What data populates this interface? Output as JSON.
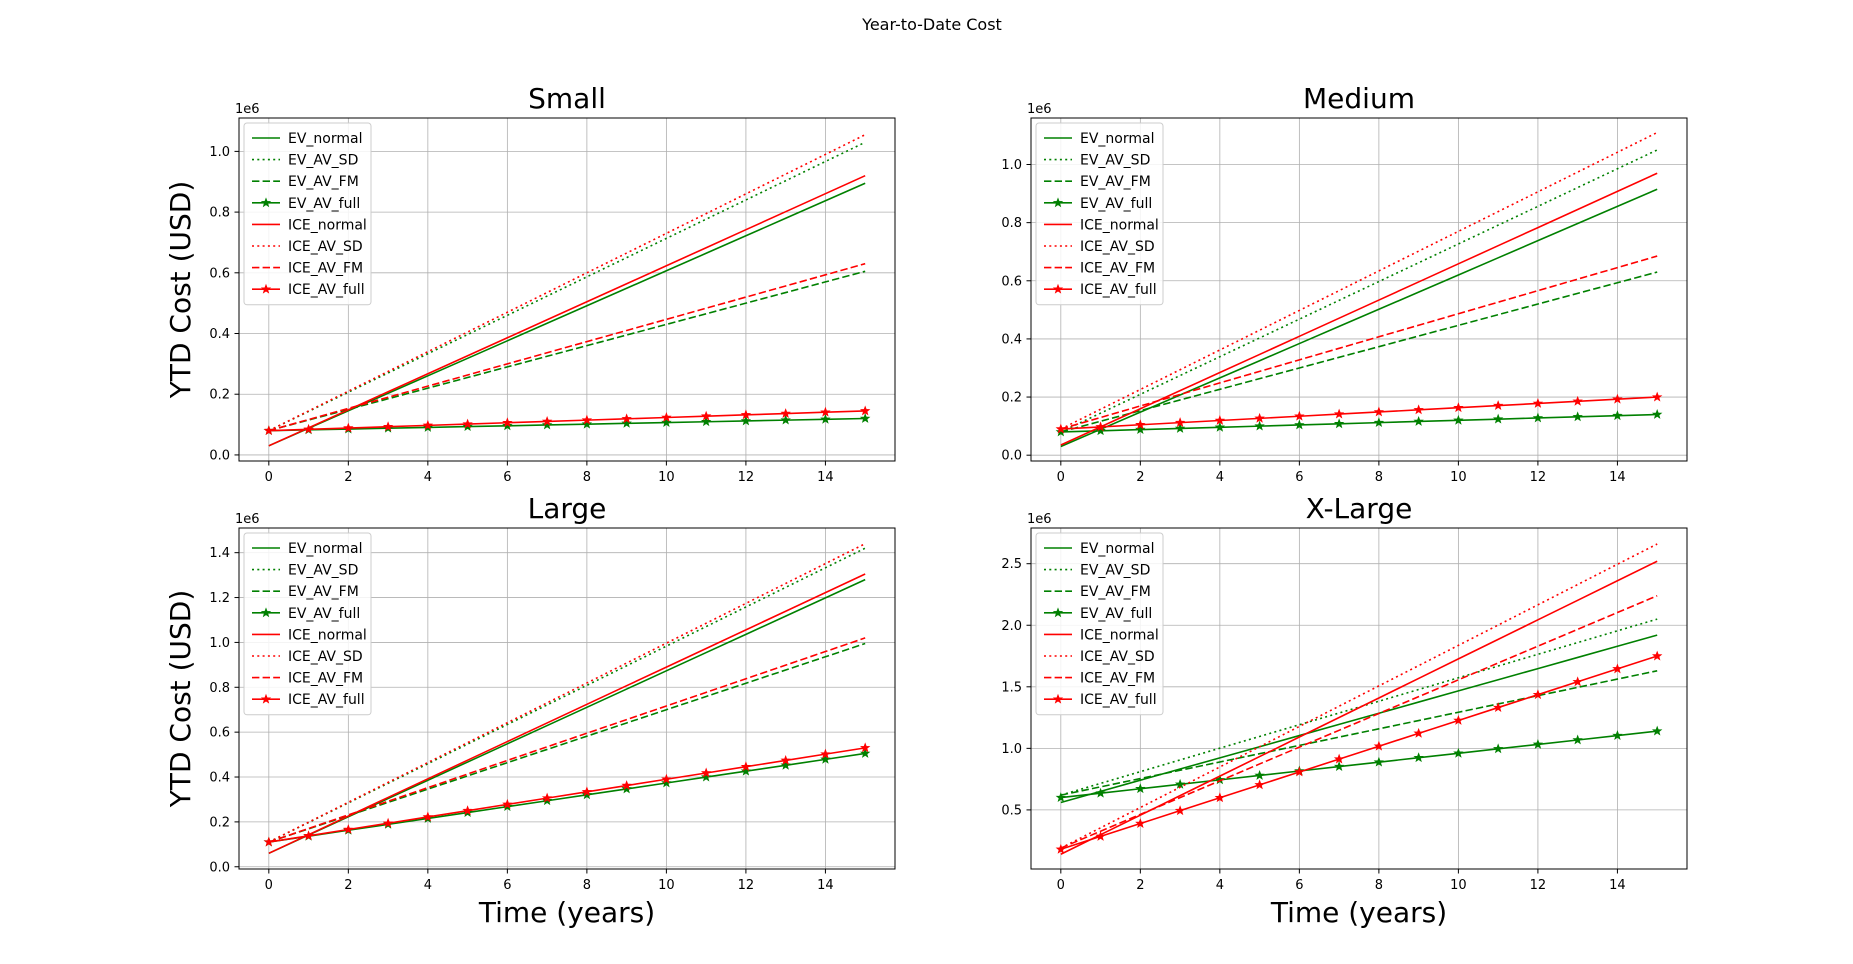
{
  "figure": {
    "suptitle": "Year-to-Date Cost"
  },
  "colors": {
    "EV": "#008000",
    "ICE": "#ff0000",
    "grid": "#b0b0b0"
  },
  "chart_data": [
    {
      "type": "line",
      "title": "Small",
      "xlabel": "",
      "ylabel": "YTD Cost (USD)",
      "offset_label": "1e6",
      "xlim": [
        -0.75,
        15.75
      ],
      "ylim": [
        -0.02,
        1.11
      ],
      "xticks": [
        0,
        2,
        4,
        6,
        8,
        10,
        12,
        14
      ],
      "yticks": [
        0.0,
        0.2,
        0.4,
        0.6,
        0.8,
        1.0
      ],
      "ytick_labels": [
        "0.0",
        "0.2",
        "0.4",
        "0.6",
        "0.8",
        "1.0"
      ],
      "grid": true,
      "legend_position": "upper-left",
      "x": [
        0,
        1,
        2,
        3,
        4,
        5,
        6,
        7,
        8,
        9,
        10,
        11,
        12,
        13,
        14,
        15
      ],
      "series": [
        {
          "name": "EV_normal",
          "vehicle": "EV",
          "style": "solid",
          "start": 0.03,
          "end": 0.895
        },
        {
          "name": "EV_AV_SD",
          "vehicle": "EV",
          "style": "dotted",
          "start": 0.08,
          "end": 1.03
        },
        {
          "name": "EV_AV_FM",
          "vehicle": "EV",
          "style": "dashed",
          "start": 0.08,
          "end": 0.605
        },
        {
          "name": "EV_AV_full",
          "vehicle": "EV",
          "style": "star",
          "start": 0.08,
          "end": 0.12
        },
        {
          "name": "ICE_normal",
          "vehicle": "ICE",
          "style": "solid",
          "start": 0.03,
          "end": 0.92
        },
        {
          "name": "ICE_AV_SD",
          "vehicle": "ICE",
          "style": "dotted",
          "start": 0.08,
          "end": 1.055
        },
        {
          "name": "ICE_AV_FM",
          "vehicle": "ICE",
          "style": "dashed",
          "start": 0.08,
          "end": 0.63
        },
        {
          "name": "ICE_AV_full",
          "vehicle": "ICE",
          "style": "star",
          "start": 0.08,
          "end": 0.145
        }
      ]
    },
    {
      "type": "line",
      "title": "Medium",
      "xlabel": "",
      "ylabel": "",
      "offset_label": "1e6",
      "xlim": [
        -0.75,
        15.75
      ],
      "ylim": [
        -0.02,
        1.16
      ],
      "xticks": [
        0,
        2,
        4,
        6,
        8,
        10,
        12,
        14
      ],
      "yticks": [
        0.0,
        0.2,
        0.4,
        0.6,
        0.8,
        1.0
      ],
      "ytick_labels": [
        "0.0",
        "0.2",
        "0.4",
        "0.6",
        "0.8",
        "1.0"
      ],
      "grid": true,
      "legend_position": "upper-left",
      "x": [
        0,
        1,
        2,
        3,
        4,
        5,
        6,
        7,
        8,
        9,
        10,
        11,
        12,
        13,
        14,
        15
      ],
      "series": [
        {
          "name": "EV_normal",
          "vehicle": "EV",
          "style": "solid",
          "start": 0.03,
          "end": 0.915
        },
        {
          "name": "EV_AV_SD",
          "vehicle": "EV",
          "style": "dotted",
          "start": 0.08,
          "end": 1.05
        },
        {
          "name": "EV_AV_FM",
          "vehicle": "EV",
          "style": "dashed",
          "start": 0.08,
          "end": 0.63
        },
        {
          "name": "EV_AV_full",
          "vehicle": "EV",
          "style": "star",
          "start": 0.08,
          "end": 0.14
        },
        {
          "name": "ICE_normal",
          "vehicle": "ICE",
          "style": "solid",
          "start": 0.035,
          "end": 0.97
        },
        {
          "name": "ICE_AV_SD",
          "vehicle": "ICE",
          "style": "dotted",
          "start": 0.09,
          "end": 1.11
        },
        {
          "name": "ICE_AV_FM",
          "vehicle": "ICE",
          "style": "dashed",
          "start": 0.09,
          "end": 0.685
        },
        {
          "name": "ICE_AV_full",
          "vehicle": "ICE",
          "style": "star",
          "start": 0.09,
          "end": 0.2
        }
      ]
    },
    {
      "type": "line",
      "title": "Large",
      "xlabel": "Time (years)",
      "ylabel": "YTD Cost (USD)",
      "offset_label": "1e6",
      "xlim": [
        -0.75,
        15.75
      ],
      "ylim": [
        -0.01,
        1.51
      ],
      "xticks": [
        0,
        2,
        4,
        6,
        8,
        10,
        12,
        14
      ],
      "yticks": [
        0.0,
        0.2,
        0.4,
        0.6,
        0.8,
        1.0,
        1.2,
        1.4
      ],
      "ytick_labels": [
        "0.0",
        "0.2",
        "0.4",
        "0.6",
        "0.8",
        "1.0",
        "1.2",
        "1.4"
      ],
      "grid": true,
      "legend_position": "upper-left",
      "x": [
        0,
        1,
        2,
        3,
        4,
        5,
        6,
        7,
        8,
        9,
        10,
        11,
        12,
        13,
        14,
        15
      ],
      "series": [
        {
          "name": "EV_normal",
          "vehicle": "EV",
          "style": "solid",
          "start": 0.06,
          "end": 1.28
        },
        {
          "name": "EV_AV_SD",
          "vehicle": "EV",
          "style": "dotted",
          "start": 0.11,
          "end": 1.42
        },
        {
          "name": "EV_AV_FM",
          "vehicle": "EV",
          "style": "dashed",
          "start": 0.11,
          "end": 0.995
        },
        {
          "name": "EV_AV_full",
          "vehicle": "EV",
          "style": "star",
          "start": 0.11,
          "end": 0.505
        },
        {
          "name": "ICE_normal",
          "vehicle": "ICE",
          "style": "solid",
          "start": 0.06,
          "end": 1.305
        },
        {
          "name": "ICE_AV_SD",
          "vehicle": "ICE",
          "style": "dotted",
          "start": 0.11,
          "end": 1.44
        },
        {
          "name": "ICE_AV_FM",
          "vehicle": "ICE",
          "style": "dashed",
          "start": 0.11,
          "end": 1.02
        },
        {
          "name": "ICE_AV_full",
          "vehicle": "ICE",
          "style": "star",
          "start": 0.11,
          "end": 0.53
        }
      ]
    },
    {
      "type": "line",
      "title": "X-Large",
      "xlabel": "Time (years)",
      "ylabel": "",
      "offset_label": "1e6",
      "xlim": [
        -0.75,
        15.75
      ],
      "ylim": [
        0.02,
        2.79
      ],
      "xticks": [
        0,
        2,
        4,
        6,
        8,
        10,
        12,
        14
      ],
      "yticks": [
        0.5,
        1.0,
        1.5,
        2.0,
        2.5
      ],
      "ytick_labels": [
        "0.5",
        "1.0",
        "1.5",
        "2.0",
        "2.5"
      ],
      "grid": true,
      "legend_position": "upper-left",
      "x": [
        0,
        1,
        2,
        3,
        4,
        5,
        6,
        7,
        8,
        9,
        10,
        11,
        12,
        13,
        14,
        15
      ],
      "series": [
        {
          "name": "EV_normal",
          "vehicle": "EV",
          "style": "solid",
          "start": 0.56,
          "end": 1.92
        },
        {
          "name": "EV_AV_SD",
          "vehicle": "EV",
          "style": "dotted",
          "start": 0.62,
          "end": 2.05
        },
        {
          "name": "EV_AV_FM",
          "vehicle": "EV",
          "style": "dashed",
          "start": 0.62,
          "end": 1.63
        },
        {
          "name": "EV_AV_full",
          "vehicle": "EV",
          "style": "star",
          "start": 0.6,
          "end": 1.14
        },
        {
          "name": "ICE_normal",
          "vehicle": "ICE",
          "style": "solid",
          "start": 0.14,
          "end": 2.52
        },
        {
          "name": "ICE_AV_SD",
          "vehicle": "ICE",
          "style": "dotted",
          "start": 0.19,
          "end": 2.66
        },
        {
          "name": "ICE_AV_FM",
          "vehicle": "ICE",
          "style": "dashed",
          "start": 0.19,
          "end": 2.24
        },
        {
          "name": "ICE_AV_full",
          "vehicle": "ICE",
          "style": "star",
          "start": 0.18,
          "end": 1.75
        }
      ]
    }
  ]
}
